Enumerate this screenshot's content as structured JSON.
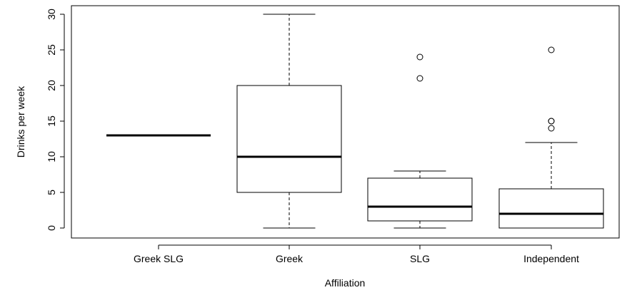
{
  "chart_data": {
    "type": "boxplot",
    "xlabel": "Affiliation",
    "ylabel": "Drinks per week",
    "ylim": [
      0,
      30
    ],
    "yticks": [
      0,
      5,
      10,
      15,
      20,
      25,
      30
    ],
    "grid": false,
    "legend": "none",
    "categories": [
      "Greek SLG",
      "Greek",
      "SLG",
      "Independent"
    ],
    "boxes": [
      {
        "category": "Greek SLG",
        "whisker_low": 13,
        "q1": 13,
        "median": 13,
        "q3": 13,
        "whisker_high": 13,
        "outliers": []
      },
      {
        "category": "Greek",
        "whisker_low": 0,
        "q1": 5,
        "median": 10,
        "q3": 20,
        "whisker_high": 30,
        "outliers": []
      },
      {
        "category": "SLG",
        "whisker_low": 0,
        "q1": 1,
        "median": 3,
        "q3": 7,
        "whisker_high": 8,
        "outliers": [
          21,
          24
        ]
      },
      {
        "category": "Independent",
        "whisker_low": 0,
        "q1": 0,
        "median": 2,
        "q3": 5.5,
        "whisker_high": 12,
        "outliers": [
          14,
          15,
          15,
          25
        ]
      }
    ]
  }
}
